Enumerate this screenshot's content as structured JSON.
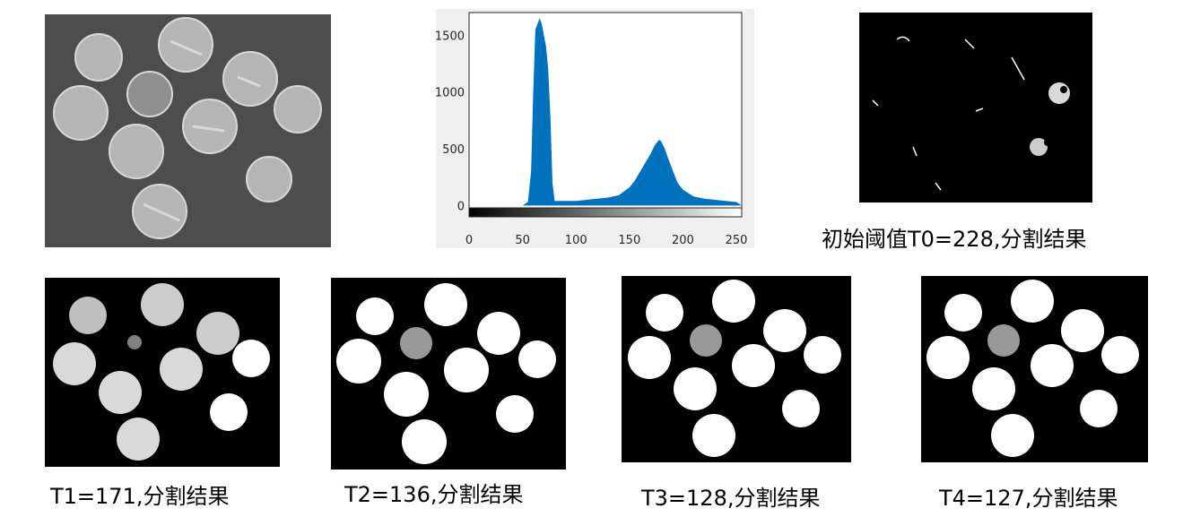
{
  "colors": {
    "coin_bg": "#4a4a4a",
    "coin_face": "#b8b8b8",
    "hist_fill": "#0072bd",
    "axis": "#262626",
    "mask_bg": "#000000",
    "mask_fg": "#ffffff"
  },
  "histogram": {
    "chart_data": {
      "type": "area",
      "x": [
        0,
        50,
        55,
        58,
        60,
        62,
        64,
        66,
        68,
        70,
        72,
        74,
        76,
        78,
        80,
        90,
        100,
        110,
        120,
        130,
        140,
        150,
        155,
        160,
        165,
        170,
        173,
        176,
        178,
        180,
        183,
        186,
        190,
        195,
        200,
        210,
        220,
        230,
        240,
        250,
        255
      ],
      "y": [
        0,
        0,
        30,
        300,
        1000,
        1550,
        1600,
        1650,
        1600,
        1500,
        1400,
        1200,
        800,
        200,
        40,
        40,
        40,
        50,
        60,
        70,
        90,
        160,
        220,
        300,
        380,
        460,
        520,
        560,
        580,
        560,
        500,
        420,
        320,
        200,
        140,
        80,
        60,
        50,
        40,
        30,
        0
      ],
      "xlim": [
        0,
        255
      ],
      "ylim": [
        -100,
        1700
      ],
      "xticks": [
        "0",
        "50",
        "100",
        "150",
        "200",
        "250"
      ],
      "yticks": [
        "0",
        "500",
        "1000",
        "1500"
      ],
      "grid": false
    }
  },
  "captions": {
    "t0": "初始阈值T0=228,分割结果",
    "t1": "T1=171,分割结果",
    "t2": "T2=136,分割结果",
    "t3": "T3=128,分割结果",
    "t4": "T4=127,分割结果"
  }
}
